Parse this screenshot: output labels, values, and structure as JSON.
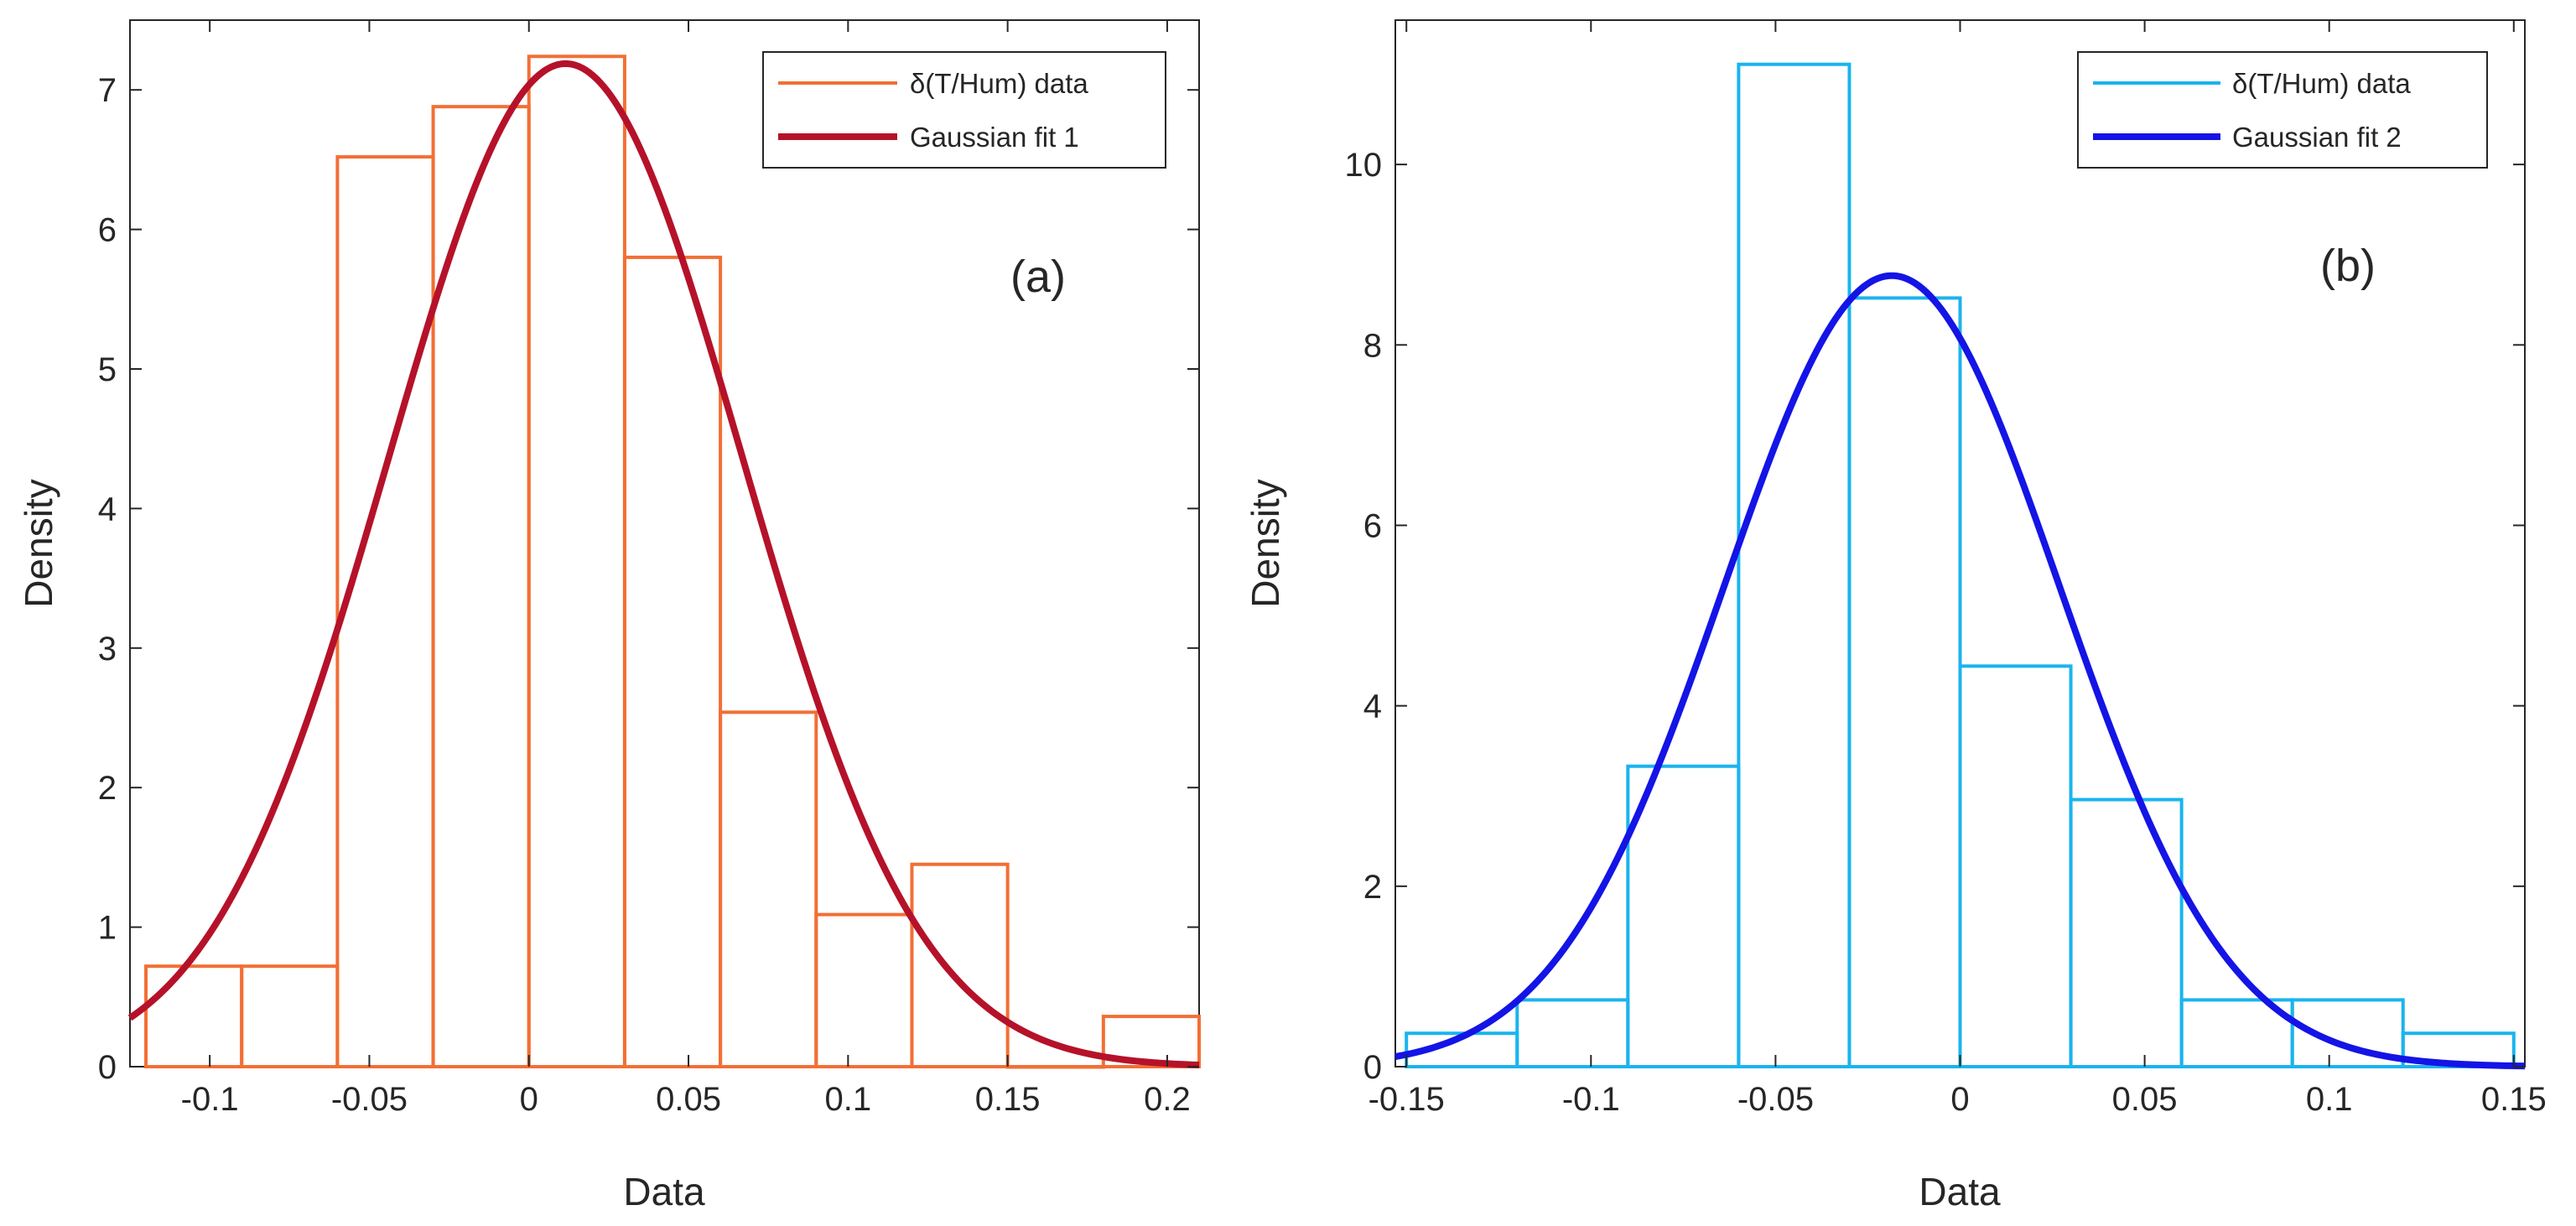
{
  "chart_data": [
    {
      "type": "histogram",
      "panel_label": "(a)",
      "xlabel": "Data",
      "ylabel": "Density",
      "xlim": [
        -0.125,
        0.21
      ],
      "ylim": [
        0,
        7.5
      ],
      "xticks": [
        -0.1,
        -0.05,
        0,
        0.05,
        0.1,
        0.15,
        0.2
      ],
      "xtick_labels": [
        "-0.1",
        "-0.05",
        "0",
        "0.05",
        "0.1",
        "0.15",
        "0.2"
      ],
      "yticks": [
        0,
        1,
        2,
        3,
        4,
        5,
        6,
        7
      ],
      "ytick_labels": [
        "0",
        "1",
        "2",
        "3",
        "4",
        "5",
        "6",
        "7"
      ],
      "bins": [
        {
          "left": -0.12,
          "right": -0.09,
          "value": 0.72
        },
        {
          "left": -0.09,
          "right": -0.06,
          "value": 0.72
        },
        {
          "left": -0.06,
          "right": -0.03,
          "value": 6.52
        },
        {
          "left": -0.03,
          "right": 0.0,
          "value": 6.88
        },
        {
          "left": 0.0,
          "right": 0.03,
          "value": 7.24
        },
        {
          "left": 0.03,
          "right": 0.06,
          "value": 5.8
        },
        {
          "left": 0.06,
          "right": 0.09,
          "value": 2.54
        },
        {
          "left": 0.09,
          "right": 0.12,
          "value": 1.09
        },
        {
          "left": 0.12,
          "right": 0.15,
          "value": 1.45
        },
        {
          "left": 0.15,
          "right": 0.18,
          "value": 0.0
        },
        {
          "left": 0.18,
          "right": 0.21,
          "value": 0.36
        }
      ],
      "fit": {
        "mu": 0.0115,
        "sigma": 0.0555
      },
      "legend": [
        "δ(T/Hum) data",
        "Gaussian fit 1"
      ],
      "colors": {
        "hist": "#f26f35",
        "fit": "#b5122a"
      }
    },
    {
      "type": "histogram",
      "panel_label": "(b)",
      "xlabel": "Data",
      "ylabel": "Density",
      "xlim": [
        -0.153,
        0.153
      ],
      "ylim": [
        0,
        11.6
      ],
      "xticks": [
        -0.15,
        -0.1,
        -0.05,
        0,
        0.05,
        0.1,
        0.15
      ],
      "xtick_labels": [
        "-0.15",
        "-0.1",
        "-0.05",
        "0",
        "0.05",
        "0.1",
        "0.15"
      ],
      "yticks": [
        0,
        2,
        4,
        6,
        8,
        10
      ],
      "ytick_labels": [
        "0",
        "2",
        "4",
        "6",
        "8",
        "10"
      ],
      "bins": [
        {
          "left": -0.15,
          "right": -0.12,
          "value": 0.37
        },
        {
          "left": -0.12,
          "right": -0.09,
          "value": 0.74
        },
        {
          "left": -0.09,
          "right": -0.06,
          "value": 3.33
        },
        {
          "left": -0.06,
          "right": -0.03,
          "value": 11.11
        },
        {
          "left": -0.03,
          "right": 0.0,
          "value": 8.52
        },
        {
          "left": 0.0,
          "right": 0.03,
          "value": 4.44
        },
        {
          "left": 0.03,
          "right": 0.06,
          "value": 2.96
        },
        {
          "left": 0.06,
          "right": 0.09,
          "value": 0.74
        },
        {
          "left": 0.09,
          "right": 0.12,
          "value": 0.74
        },
        {
          "left": 0.12,
          "right": 0.15,
          "value": 0.37
        }
      ],
      "fit": {
        "mu": -0.0185,
        "sigma": 0.0455
      },
      "legend": [
        "δ(T/Hum) data",
        "Gaussian fit 2"
      ],
      "colors": {
        "hist": "#1ab4ef",
        "fit": "#1414e6"
      }
    }
  ]
}
